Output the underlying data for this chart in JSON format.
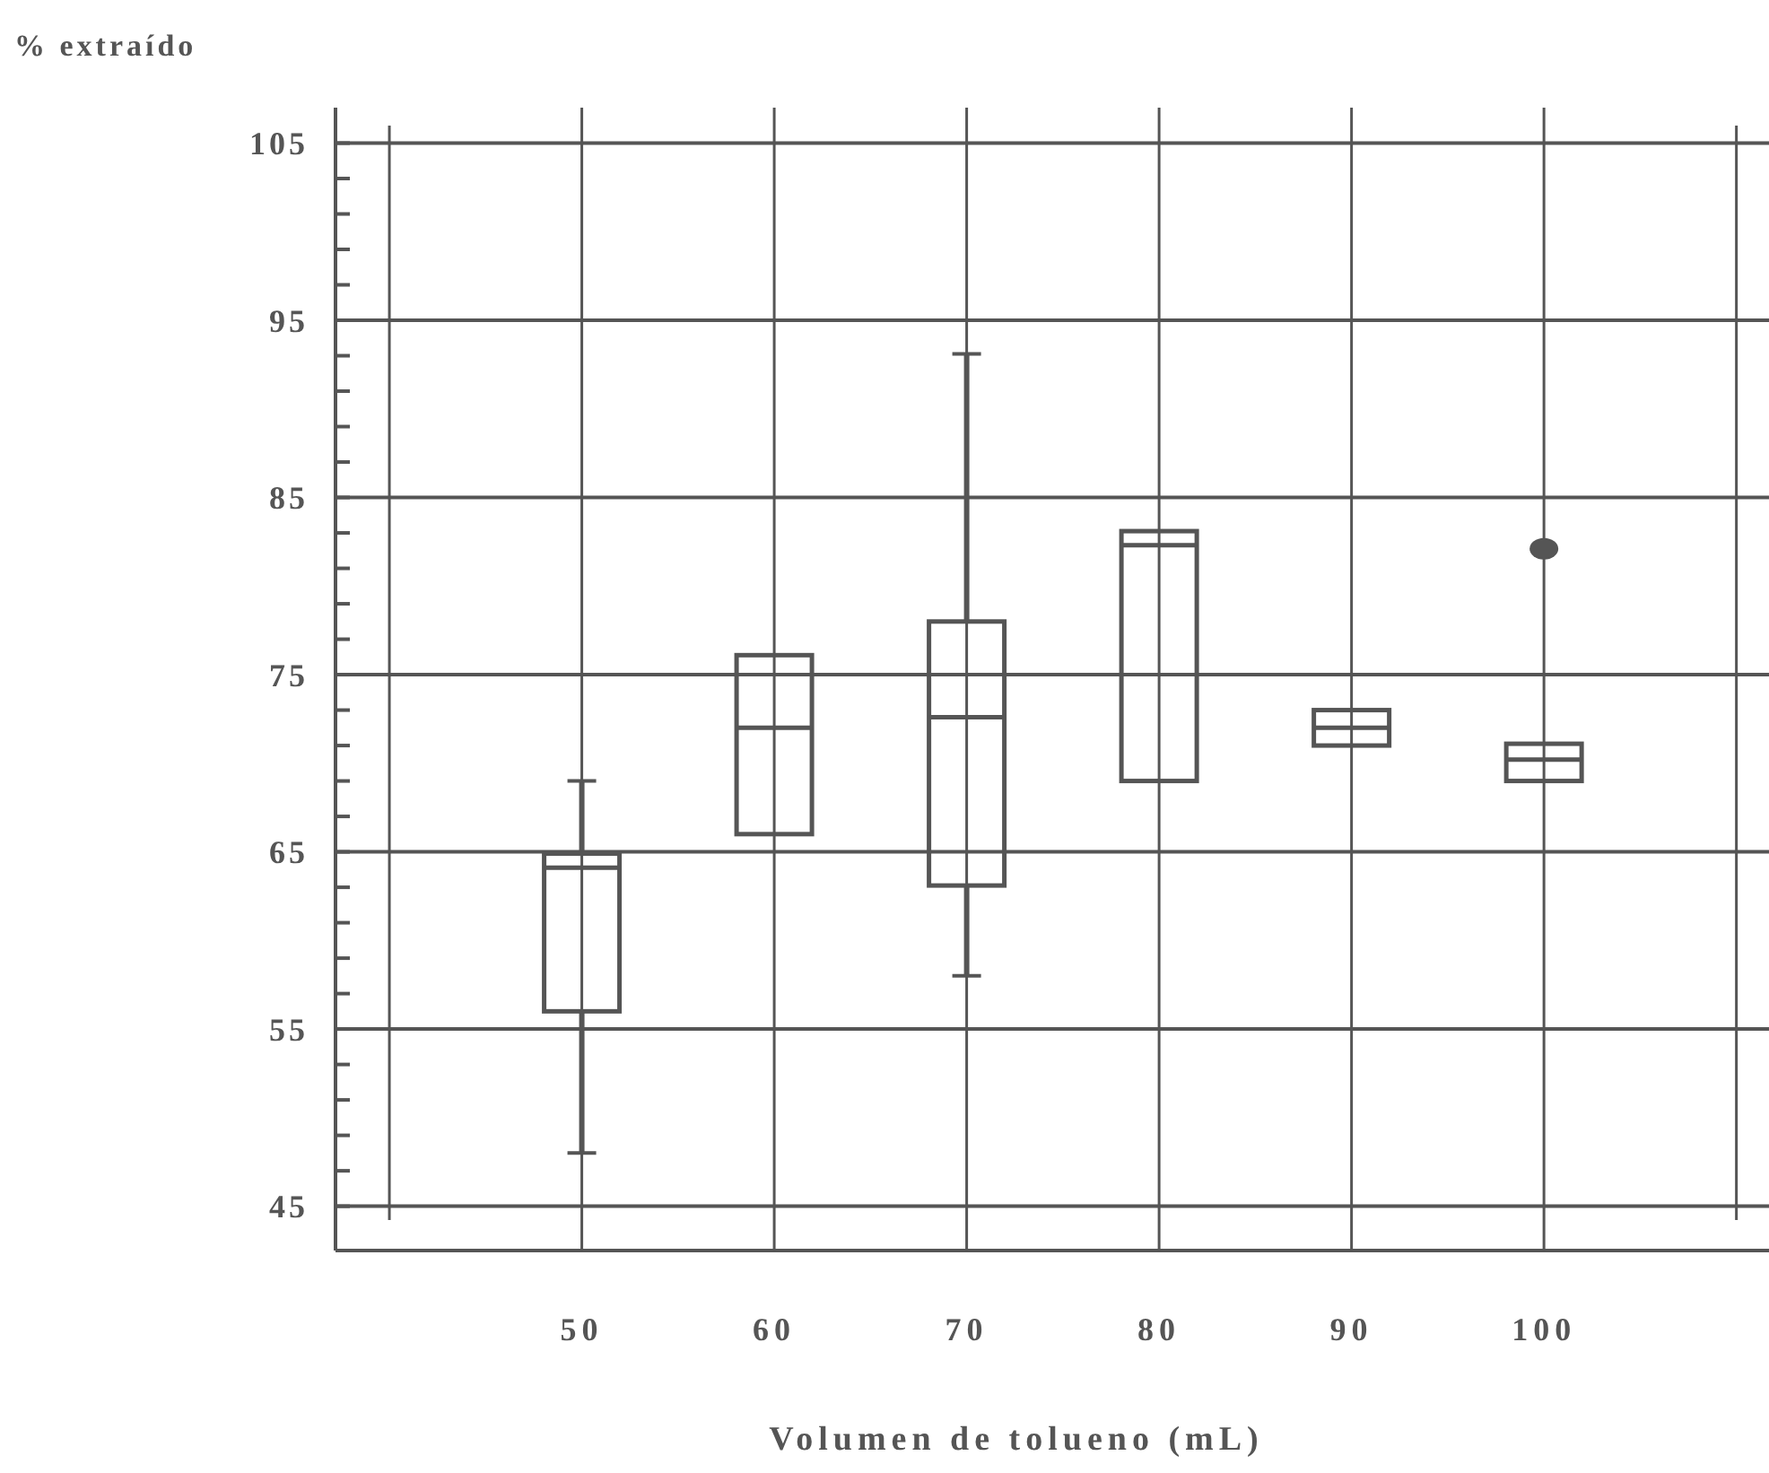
{
  "chart_data": {
    "type": "box",
    "ylabel": "% extraído",
    "xlabel": "Volumen de tolueno (mL)",
    "categories": [
      null,
      "50",
      "60",
      "70",
      "80",
      "90",
      "100",
      null
    ],
    "boxes": [
      null,
      {
        "low": 48,
        "q1": 56,
        "median": 64.1,
        "q3": 64.9,
        "high": 69
      },
      {
        "low": 66,
        "q1": 66,
        "median": 72,
        "q3": 76.1,
        "high": 76.1
      },
      {
        "low": 58,
        "q1": 63.1,
        "median": 72.6,
        "q3": 78,
        "high": 93.1
      },
      {
        "low": 69,
        "q1": 69,
        "median": 82.3,
        "q3": 83.1,
        "high": 83.1
      },
      {
        "low": 71,
        "q1": 71,
        "median": 72,
        "q3": 73,
        "high": 73
      },
      {
        "low": 69,
        "q1": 69,
        "median": 70.2,
        "q3": 71.1,
        "high": 71.1,
        "outliers": [
          82.1
        ]
      },
      null
    ],
    "color": "#555555",
    "ylim": [
      42.5,
      107
    ],
    "yticks": [
      45,
      {
        "value": 47,
        "label": null
      },
      {
        "value": 49,
        "label": null
      },
      {
        "value": 51,
        "label": null
      },
      {
        "value": 53,
        "label": null
      },
      55,
      {
        "value": 57,
        "label": null
      },
      {
        "value": 59,
        "label": null
      },
      {
        "value": 61,
        "label": null
      },
      {
        "value": 63,
        "label": null
      },
      65,
      {
        "value": 67,
        "label": null
      },
      {
        "value": 69,
        "label": null
      },
      {
        "value": 71,
        "label": null
      },
      {
        "value": 73,
        "label": null
      },
      75,
      {
        "value": 77,
        "label": null
      },
      {
        "value": 79,
        "label": null
      },
      {
        "value": 81,
        "label": null
      },
      {
        "value": 83,
        "label": null
      },
      85,
      {
        "value": 87,
        "label": null
      },
      {
        "value": 89,
        "label": null
      },
      {
        "value": 91,
        "label": null
      },
      {
        "value": 93,
        "label": null
      },
      95,
      {
        "value": 97,
        "label": null
      },
      {
        "value": 99,
        "label": null
      },
      {
        "value": 101,
        "label": null
      },
      {
        "value": 103,
        "label": null
      },
      105
    ],
    "grid": true
  }
}
